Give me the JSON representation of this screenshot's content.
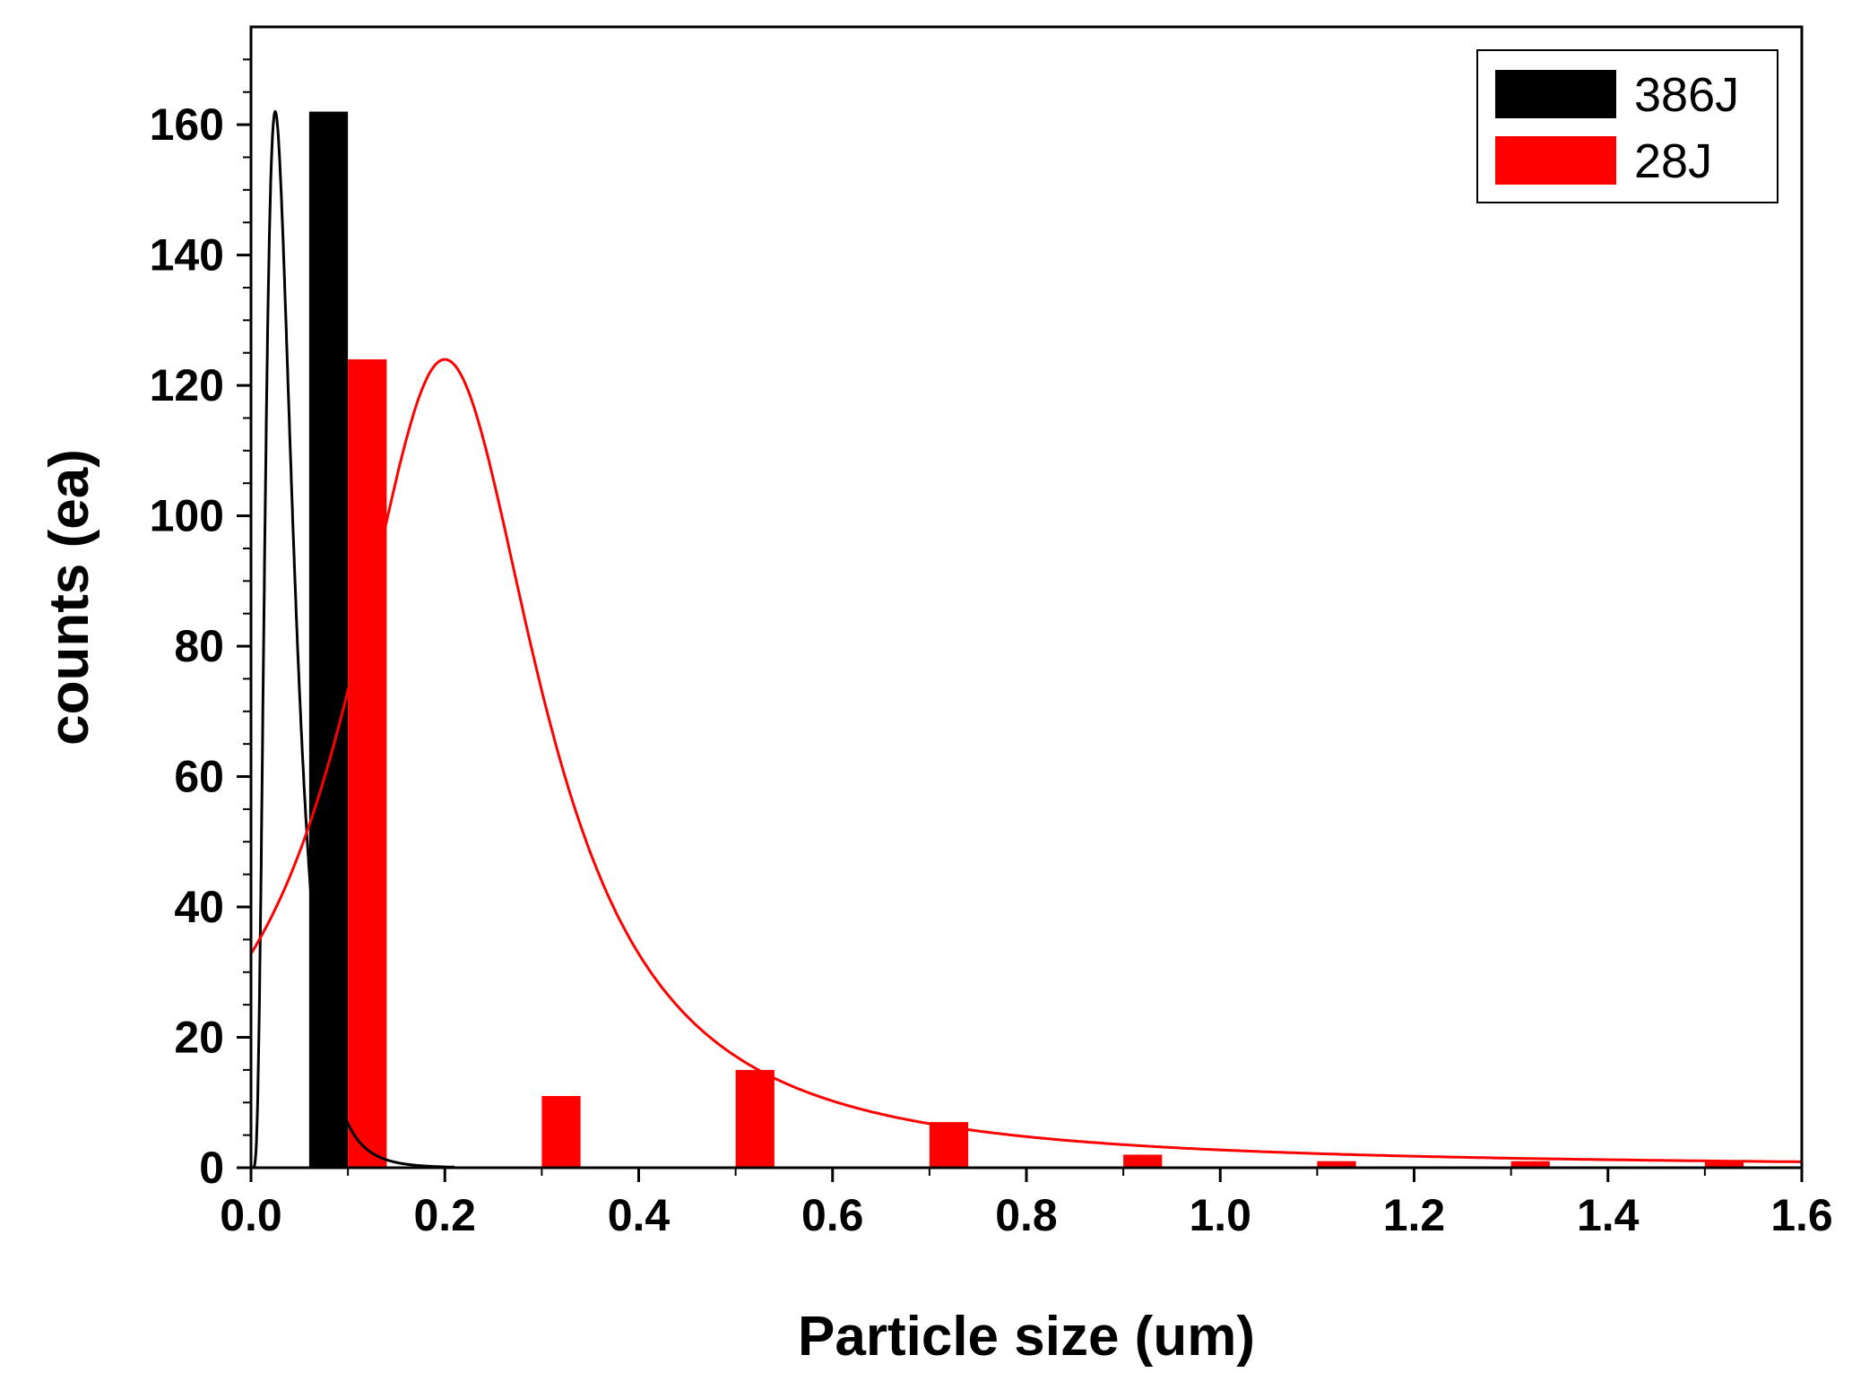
{
  "chart_data": {
    "type": "bar",
    "xlabel": "Particle size (um)",
    "ylabel": "counts (ea)",
    "xlim": [
      0.0,
      1.6
    ],
    "ylim": [
      0,
      175
    ],
    "xticks": [
      "0.0",
      "0.2",
      "0.4",
      "0.6",
      "0.8",
      "1.0",
      "1.2",
      "1.4",
      "1.6"
    ],
    "yticks": [
      "0",
      "20",
      "40",
      "60",
      "80",
      "100",
      "120",
      "140",
      "160"
    ],
    "bar_width": 0.04,
    "legend_position": "top-right",
    "series": [
      {
        "name": "386J",
        "color": "#000000",
        "bars": [
          {
            "x": 0.08,
            "value": 162
          },
          {
            "x": 0.28,
            "value": 0
          },
          {
            "x": 0.48,
            "value": 0
          }
        ],
        "fit_curve": {
          "type": "lognormal",
          "peak_x": 0.025,
          "peak_y": 162,
          "sigma": 0.55,
          "x_start": 0.0,
          "x_end": 0.21,
          "color": "#000000"
        }
      },
      {
        "name": "28J",
        "color": "#ff0000",
        "bars": [
          {
            "x": 0.12,
            "value": 124
          },
          {
            "x": 0.32,
            "value": 11
          },
          {
            "x": 0.52,
            "value": 15
          },
          {
            "x": 0.72,
            "value": 7
          },
          {
            "x": 0.92,
            "value": 2
          },
          {
            "x": 1.12,
            "value": 1
          },
          {
            "x": 1.32,
            "value": 1
          },
          {
            "x": 1.52,
            "value": 1
          }
        ],
        "fit_curve": {
          "type": "lorentzian",
          "peak_x": 0.2,
          "peak_y": 124,
          "gamma": 0.12,
          "x_start": 0.0,
          "x_end": 1.6,
          "color": "#ff0000"
        }
      }
    ]
  }
}
